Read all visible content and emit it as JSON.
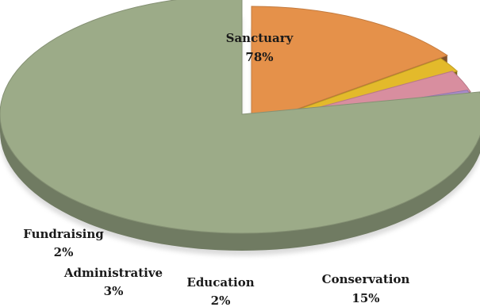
{
  "chart_data": {
    "type": "pie",
    "title": "",
    "categories": [
      "Sanctuary",
      "Conservation",
      "Education",
      "Administrative",
      "Fundraising"
    ],
    "values": [
      78,
      15,
      2,
      3,
      2
    ],
    "value_labels": [
      "78%",
      "15%",
      "2%",
      "3%",
      "2%"
    ],
    "colors": [
      "#9cab88",
      "#e5914a",
      "#e3ba2b",
      "#d88e9f",
      "#a98bc9"
    ],
    "style": "3d-exploded",
    "legend": "none"
  }
}
